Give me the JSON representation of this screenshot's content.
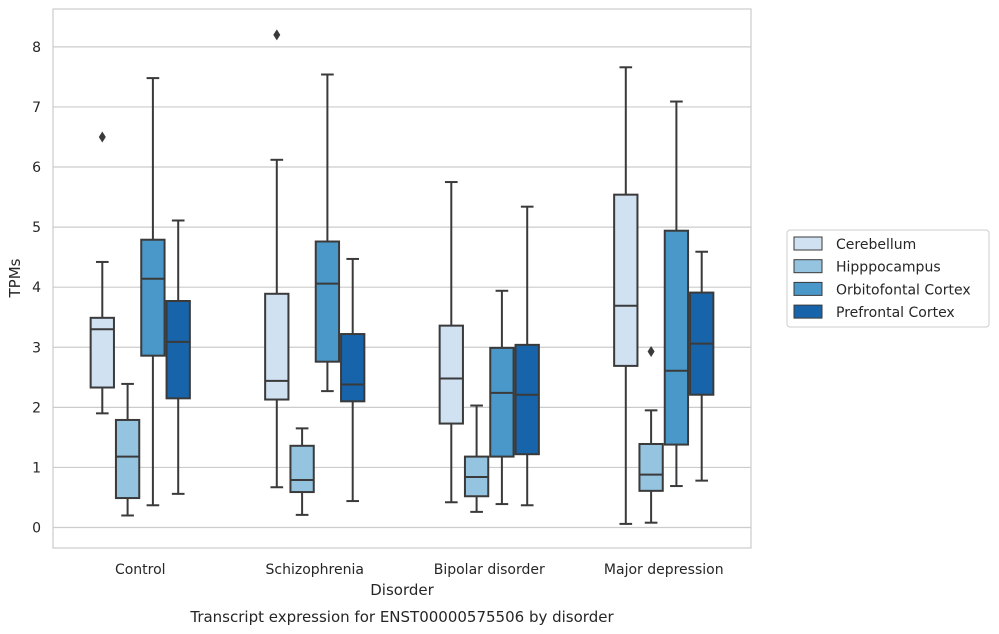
{
  "chart_data": {
    "type": "box",
    "caption": "Transcript expression for ENST00000575506 by disorder",
    "xlabel": "Disorder",
    "ylabel": "TPMs",
    "ylim": [
      -0.33,
      8.6
    ],
    "yticks": [
      0,
      1,
      2,
      3,
      4,
      5,
      6,
      7,
      8
    ],
    "grid": "horizontal",
    "legend_position": "right",
    "categories": [
      "Control",
      "Schizophrenia",
      "Bipolar disorder",
      "Major depression"
    ],
    "series": [
      {
        "name": "Cerebellum",
        "color": "#d0e1f2",
        "boxes": [
          {
            "whisker_low": 1.9,
            "q1": 2.33,
            "median": 3.3,
            "q3": 3.49,
            "whisker_high": 4.42,
            "outliers": [
              6.5
            ]
          },
          {
            "whisker_low": 0.67,
            "q1": 2.13,
            "median": 2.44,
            "q3": 3.89,
            "whisker_high": 6.12,
            "outliers": [
              8.2
            ]
          },
          {
            "whisker_low": 0.42,
            "q1": 1.73,
            "median": 2.48,
            "q3": 3.36,
            "whisker_high": 5.75,
            "outliers": []
          },
          {
            "whisker_low": 0.06,
            "q1": 2.69,
            "median": 3.69,
            "q3": 5.54,
            "whisker_high": 7.66,
            "outliers": []
          }
        ]
      },
      {
        "name": "Hipppocampus",
        "color": "#94c4df",
        "boxes": [
          {
            "whisker_low": 0.2,
            "q1": 0.49,
            "median": 1.18,
            "q3": 1.79,
            "whisker_high": 2.39,
            "outliers": []
          },
          {
            "whisker_low": 0.21,
            "q1": 0.59,
            "median": 0.79,
            "q3": 1.36,
            "whisker_high": 1.65,
            "outliers": []
          },
          {
            "whisker_low": 0.26,
            "q1": 0.52,
            "median": 0.84,
            "q3": 1.18,
            "whisker_high": 2.03,
            "outliers": []
          },
          {
            "whisker_low": 0.08,
            "q1": 0.61,
            "median": 0.88,
            "q3": 1.39,
            "whisker_high": 1.95,
            "outliers": [
              2.93
            ]
          }
        ]
      },
      {
        "name": "Orbitofontal Cortex",
        "color": "#4a98c9",
        "boxes": [
          {
            "whisker_low": 0.37,
            "q1": 2.86,
            "median": 4.14,
            "q3": 4.79,
            "whisker_high": 7.48,
            "outliers": []
          },
          {
            "whisker_low": 2.27,
            "q1": 2.76,
            "median": 4.06,
            "q3": 4.76,
            "whisker_high": 7.54,
            "outliers": []
          },
          {
            "whisker_low": 0.39,
            "q1": 1.18,
            "median": 2.24,
            "q3": 2.99,
            "whisker_high": 3.94,
            "outliers": []
          },
          {
            "whisker_low": 0.69,
            "q1": 1.38,
            "median": 2.61,
            "q3": 4.94,
            "whisker_high": 7.09,
            "outliers": []
          }
        ]
      },
      {
        "name": "Prefrontal Cortex",
        "color": "#1764ab",
        "boxes": [
          {
            "whisker_low": 0.56,
            "q1": 2.15,
            "median": 3.09,
            "q3": 3.77,
            "whisker_high": 5.11,
            "outliers": []
          },
          {
            "whisker_low": 0.44,
            "q1": 2.1,
            "median": 2.38,
            "q3": 3.22,
            "whisker_high": 4.47,
            "outliers": []
          },
          {
            "whisker_low": 0.37,
            "q1": 1.22,
            "median": 2.21,
            "q3": 3.04,
            "whisker_high": 5.34,
            "outliers": []
          },
          {
            "whisker_low": 0.78,
            "q1": 2.21,
            "median": 3.06,
            "q3": 3.91,
            "whisker_high": 4.59,
            "outliers": []
          }
        ]
      }
    ]
  }
}
